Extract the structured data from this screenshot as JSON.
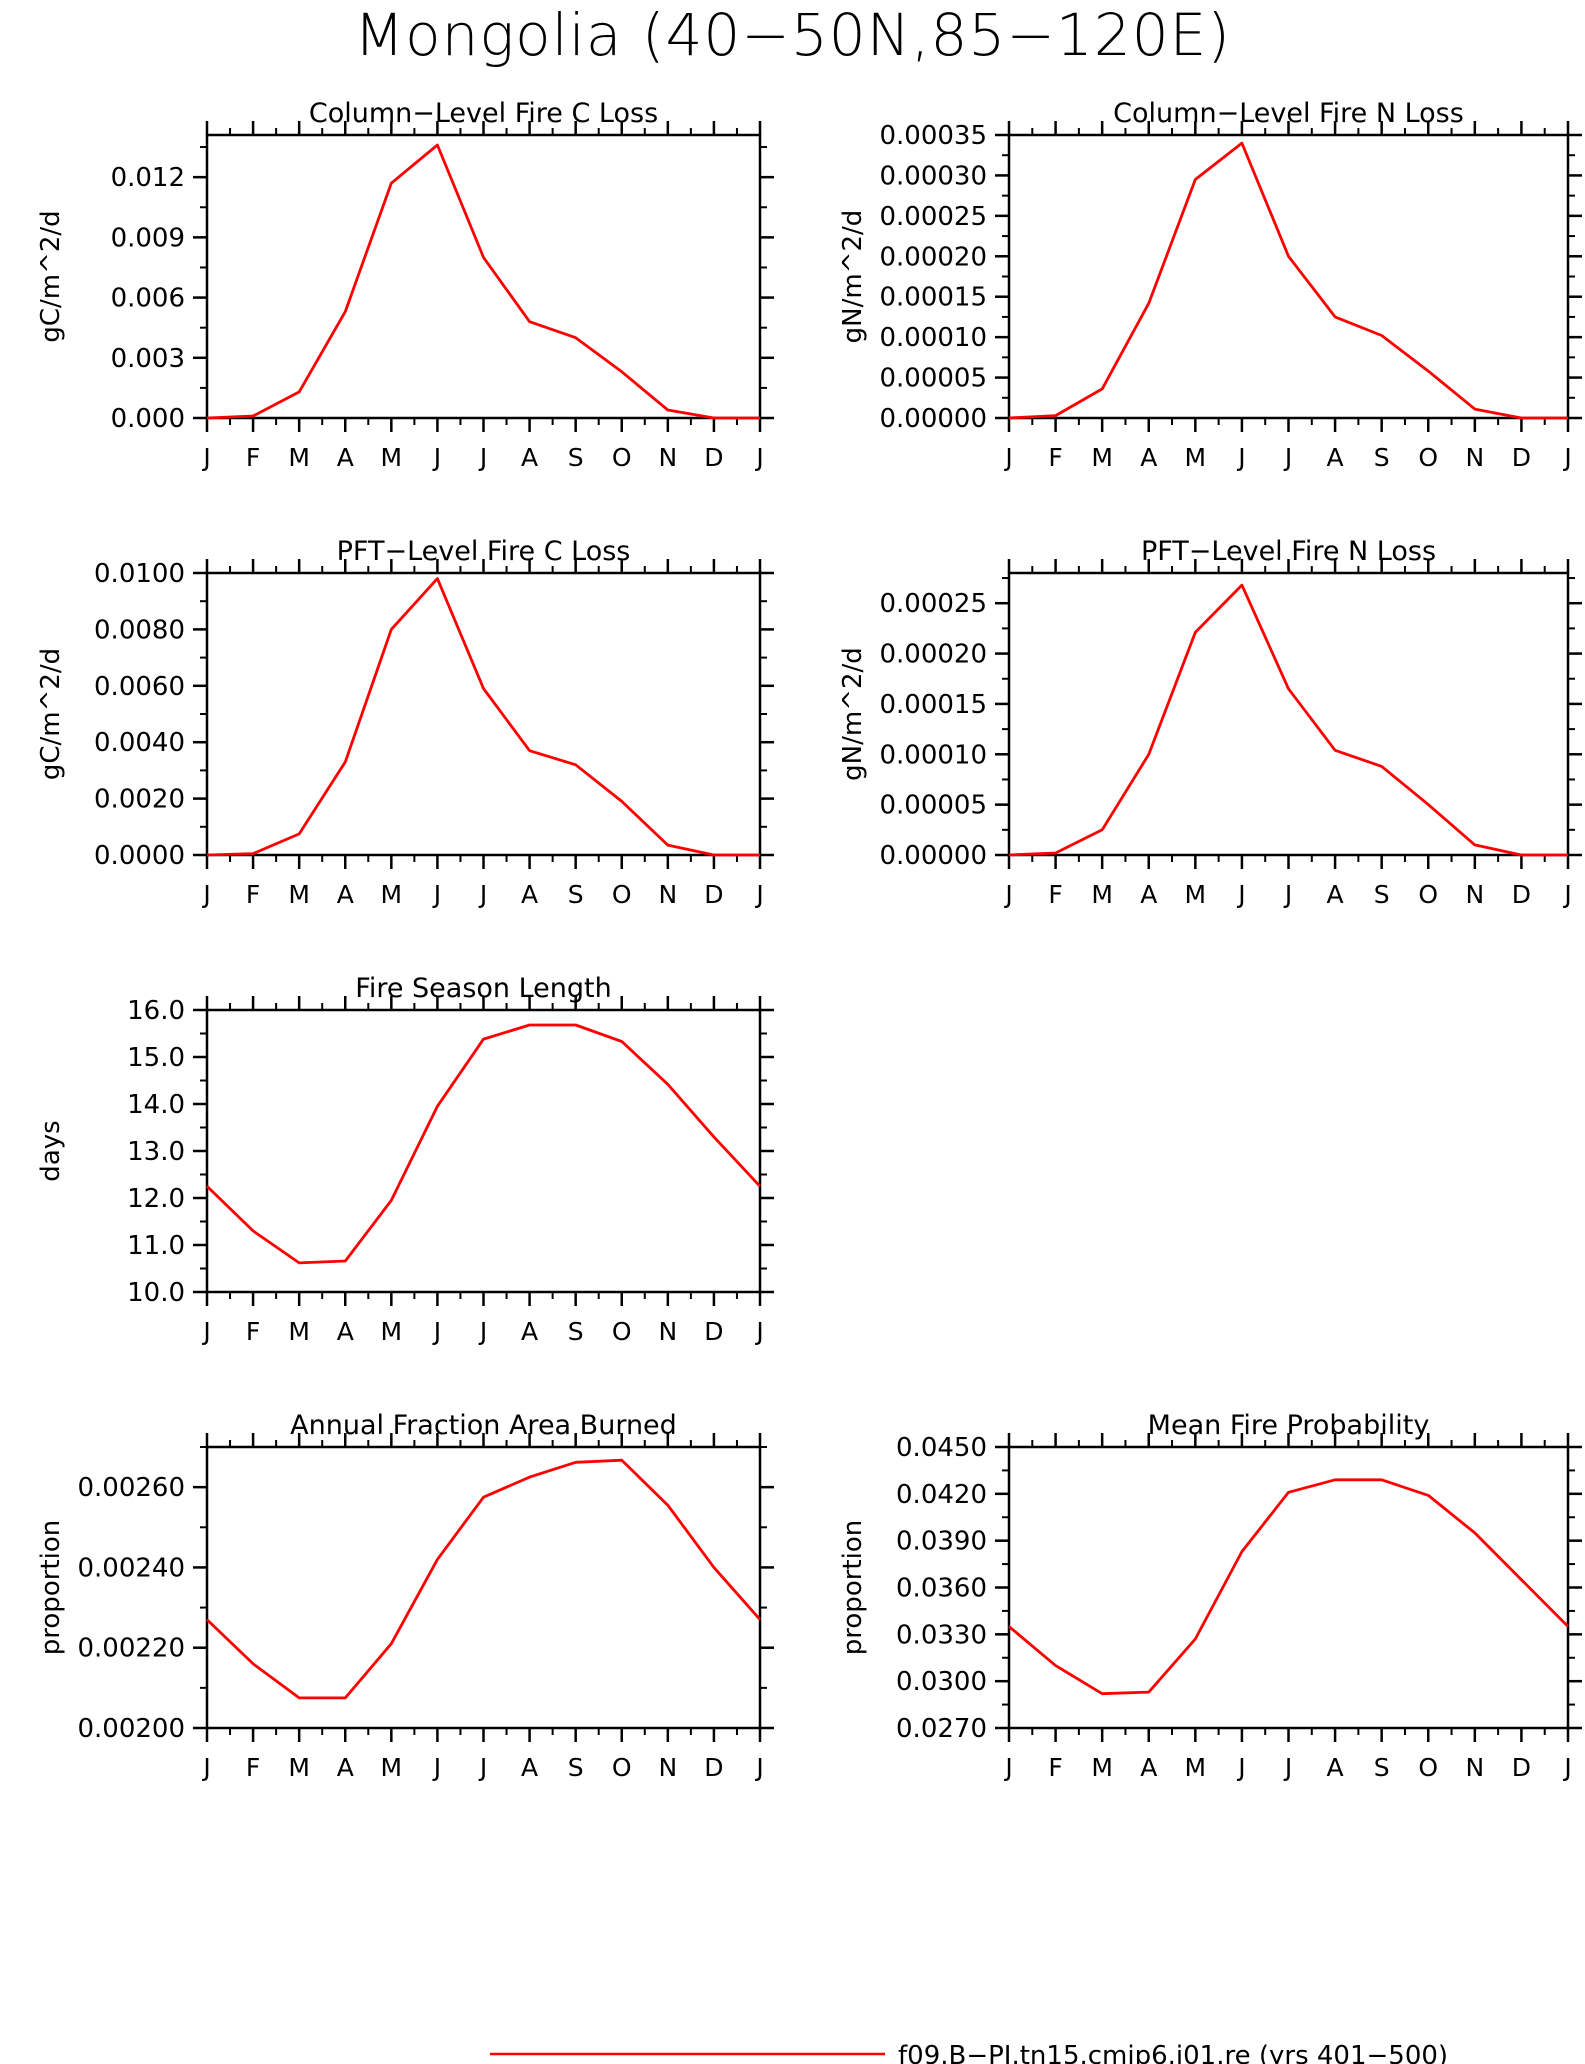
{
  "figure_title": "Mongolia (40−50N,85−120E)",
  "line_color": "#ff0000",
  "legend": {
    "label": "f09.B−PI.tn15.cmip6.j01.re (yrs 401−500)"
  },
  "chart_data": [
    {
      "id": "column-fire-c-loss",
      "type": "line",
      "title": "Column−Level Fire C Loss",
      "ylabel": "gC/m^2/d",
      "xlabel": "",
      "categories": [
        "J",
        "F",
        "M",
        "A",
        "M",
        "J",
        "J",
        "A",
        "S",
        "O",
        "N",
        "D",
        "J"
      ],
      "yticks": [
        "0.000",
        "0.003",
        "0.006",
        "0.009",
        "0.012"
      ],
      "ytick_values": [
        0,
        0.003,
        0.006,
        0.009,
        0.012
      ],
      "ylim": [
        0,
        0.0141
      ],
      "grid": false,
      "series": [
        {
          "values": [
            0.0,
            0.0001,
            0.0013,
            0.0053,
            0.0117,
            0.0136,
            0.008,
            0.0048,
            0.004,
            0.0023,
            0.0004,
            0.0,
            0.0
          ]
        }
      ]
    },
    {
      "id": "column-fire-n-loss",
      "type": "line",
      "title": "Column−Level Fire N Loss",
      "ylabel": "gN/m^2/d",
      "xlabel": "",
      "categories": [
        "J",
        "F",
        "M",
        "A",
        "M",
        "J",
        "J",
        "A",
        "S",
        "O",
        "N",
        "D",
        "J"
      ],
      "yticks": [
        "0.00000",
        "0.00005",
        "0.00010",
        "0.00015",
        "0.00020",
        "0.00025",
        "0.00030",
        "0.00035"
      ],
      "ytick_values": [
        0,
        5e-05,
        0.0001,
        0.00015,
        0.0002,
        0.00025,
        0.0003,
        0.00035
      ],
      "ylim": [
        0,
        0.00035
      ],
      "grid": false,
      "series": [
        {
          "values": [
            0.0,
            3e-06,
            3.6e-05,
            0.000142,
            0.000295,
            0.00034,
            0.0002,
            0.000125,
            0.000102,
            5.8e-05,
            1.1e-05,
            0.0,
            0.0
          ]
        }
      ]
    },
    {
      "id": "pft-fire-c-loss",
      "type": "line",
      "title": "PFT−Level Fire C Loss",
      "ylabel": "gC/m^2/d",
      "xlabel": "",
      "categories": [
        "J",
        "F",
        "M",
        "A",
        "M",
        "J",
        "J",
        "A",
        "S",
        "O",
        "N",
        "D",
        "J"
      ],
      "yticks": [
        "0.0000",
        "0.0020",
        "0.0040",
        "0.0060",
        "0.0080",
        "0.0100"
      ],
      "ytick_values": [
        0,
        0.002,
        0.004,
        0.006,
        0.008,
        0.01
      ],
      "ylim": [
        0,
        0.01
      ],
      "grid": false,
      "series": [
        {
          "values": [
            0.0,
            5e-05,
            0.00075,
            0.0033,
            0.008,
            0.0098,
            0.0059,
            0.0037,
            0.0032,
            0.0019,
            0.00035,
            0.0,
            0.0
          ]
        }
      ]
    },
    {
      "id": "pft-fire-n-loss",
      "type": "line",
      "title": "PFT−Level Fire N Loss",
      "ylabel": "gN/m^2/d",
      "xlabel": "",
      "categories": [
        "J",
        "F",
        "M",
        "A",
        "M",
        "J",
        "J",
        "A",
        "S",
        "O",
        "N",
        "D",
        "J"
      ],
      "yticks": [
        "0.00000",
        "0.00005",
        "0.00010",
        "0.00015",
        "0.00020",
        "0.00025"
      ],
      "ytick_values": [
        0,
        5e-05,
        0.0001,
        0.00015,
        0.0002,
        0.00025
      ],
      "ylim": [
        0,
        0.00028
      ],
      "grid": false,
      "series": [
        {
          "values": [
            0.0,
            2e-06,
            2.5e-05,
            0.0001,
            0.000221,
            0.000268,
            0.000165,
            0.000104,
            8.8e-05,
            5e-05,
            1e-05,
            0.0,
            0.0
          ]
        }
      ]
    },
    {
      "id": "fire-season-length",
      "type": "line",
      "title": "Fire Season Length",
      "ylabel": "days",
      "xlabel": "",
      "categories": [
        "J",
        "F",
        "M",
        "A",
        "M",
        "J",
        "J",
        "A",
        "S",
        "O",
        "N",
        "D",
        "J"
      ],
      "yticks": [
        "10.0",
        "11.0",
        "12.0",
        "13.0",
        "14.0",
        "15.0",
        "16.0"
      ],
      "ytick_values": [
        10,
        11,
        12,
        13,
        14,
        15,
        16
      ],
      "ylim": [
        10,
        16
      ],
      "grid": false,
      "series": [
        {
          "values": [
            12.25,
            11.3,
            10.62,
            10.66,
            11.95,
            13.95,
            15.38,
            15.68,
            15.68,
            15.33,
            14.42,
            13.3,
            12.25
          ]
        }
      ]
    },
    {
      "id": "annual-fraction-area-burned",
      "type": "line",
      "title": "Annual Fraction Area Burned",
      "ylabel": "proportion",
      "xlabel": "",
      "categories": [
        "J",
        "F",
        "M",
        "A",
        "M",
        "J",
        "J",
        "A",
        "S",
        "O",
        "N",
        "D",
        "J"
      ],
      "yticks": [
        "0.00200",
        "0.00220",
        "0.00240",
        "0.00260"
      ],
      "ytick_values": [
        0.002,
        0.0022,
        0.0024,
        0.0026
      ],
      "ylim": [
        0.002,
        0.0027
      ],
      "grid": false,
      "series": [
        {
          "values": [
            0.00227,
            0.00216,
            0.002075,
            0.002075,
            0.00221,
            0.00242,
            0.002575,
            0.002625,
            0.002662,
            0.002667,
            0.002555,
            0.0024,
            0.00227
          ]
        }
      ]
    },
    {
      "id": "mean-fire-probability",
      "type": "line",
      "title": "Mean Fire Probability",
      "ylabel": "proportion",
      "xlabel": "",
      "categories": [
        "J",
        "F",
        "M",
        "A",
        "M",
        "J",
        "J",
        "A",
        "S",
        "O",
        "N",
        "D",
        "J"
      ],
      "yticks": [
        "0.0270",
        "0.0300",
        "0.0330",
        "0.0360",
        "0.0390",
        "0.0420",
        "0.0450"
      ],
      "ytick_values": [
        0.027,
        0.03,
        0.033,
        0.036,
        0.039,
        0.042,
        0.045
      ],
      "ylim": [
        0.027,
        0.045
      ],
      "grid": false,
      "series": [
        {
          "values": [
            0.0335,
            0.031,
            0.0292,
            0.0293,
            0.0327,
            0.0383,
            0.0421,
            0.0429,
            0.0429,
            0.0419,
            0.0395,
            0.0365,
            0.0335
          ]
        }
      ]
    }
  ]
}
